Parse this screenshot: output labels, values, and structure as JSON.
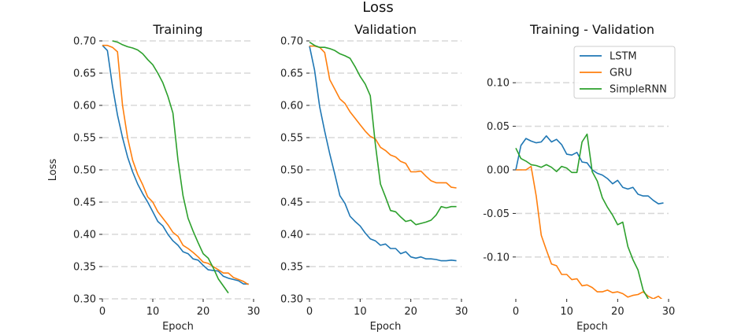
{
  "figure": {
    "title": "Loss"
  },
  "colors": {
    "LSTM": "#1f77b4",
    "GRU": "#ff7f0e",
    "SimpleRNN": "#2ca02c",
    "grid": "#d9d9d9",
    "axis": "#222222"
  },
  "legend": {
    "placement": "top-right of third panel",
    "items": [
      "LSTM",
      "GRU",
      "SimpleRNN"
    ]
  },
  "chart_data": [
    {
      "type": "line",
      "title": "Training",
      "xlabel": "Epoch",
      "ylabel": "Loss",
      "xlim": [
        0,
        30
      ],
      "ylim": [
        0.3,
        0.7
      ],
      "xticks": [
        0,
        10,
        20,
        30
      ],
      "yticks": [
        0.3,
        0.35,
        0.4,
        0.45,
        0.5,
        0.55,
        0.6,
        0.65,
        0.7
      ],
      "ytick_labels": [
        "0.30",
        "0.35",
        "0.40",
        "0.45",
        "0.50",
        "0.55",
        "0.60",
        "0.65",
        "0.70"
      ],
      "grid": "horizontal dashed",
      "series": [
        {
          "name": "LSTM",
          "x": [
            0,
            1,
            2,
            3,
            4,
            5,
            6,
            7,
            8,
            9,
            10,
            11,
            12,
            13,
            14,
            15,
            16,
            17,
            18,
            19,
            20,
            21,
            22,
            23,
            24,
            25,
            26,
            27,
            28,
            29
          ],
          "y": [
            0.693,
            0.685,
            0.63,
            0.585,
            0.55,
            0.52,
            0.497,
            0.478,
            0.463,
            0.45,
            0.435,
            0.42,
            0.413,
            0.4,
            0.39,
            0.383,
            0.373,
            0.37,
            0.362,
            0.36,
            0.352,
            0.345,
            0.344,
            0.343,
            0.335,
            0.332,
            0.33,
            0.328,
            0.323,
            0.323
          ]
        },
        {
          "name": "GRU",
          "x": [
            0,
            1,
            2,
            3,
            4,
            5,
            6,
            7,
            8,
            9,
            10,
            11,
            12,
            13,
            14,
            15,
            16,
            17,
            18,
            19,
            20,
            21,
            22,
            23,
            24,
            25,
            26,
            27,
            28,
            29
          ],
          "y": [
            0.693,
            0.693,
            0.69,
            0.683,
            0.6,
            0.55,
            0.515,
            0.493,
            0.477,
            0.458,
            0.45,
            0.435,
            0.425,
            0.415,
            0.403,
            0.397,
            0.383,
            0.378,
            0.372,
            0.365,
            0.357,
            0.355,
            0.35,
            0.345,
            0.34,
            0.34,
            0.333,
            0.33,
            0.327,
            0.322
          ]
        },
        {
          "name": "SimpleRNN",
          "x": [
            2,
            3,
            4,
            5,
            6,
            7,
            8,
            9,
            10,
            11,
            12,
            13,
            14,
            15,
            16,
            17,
            18,
            19,
            20,
            21,
            22,
            23,
            24,
            25
          ],
          "y": [
            0.7,
            0.698,
            0.694,
            0.691,
            0.689,
            0.686,
            0.68,
            0.671,
            0.663,
            0.65,
            0.635,
            0.614,
            0.588,
            0.515,
            0.46,
            0.425,
            0.405,
            0.387,
            0.37,
            0.363,
            0.348,
            0.331,
            0.32,
            0.309
          ]
        }
      ]
    },
    {
      "type": "line",
      "title": "Validation",
      "xlabel": "Epoch",
      "ylabel": "",
      "xlim": [
        0,
        30
      ],
      "ylim": [
        0.3,
        0.7
      ],
      "xticks": [
        0,
        10,
        20,
        30
      ],
      "yticks": [
        0.3,
        0.35,
        0.4,
        0.45,
        0.5,
        0.55,
        0.6,
        0.65,
        0.7
      ],
      "ytick_labels": [
        "0.30",
        "0.35",
        "0.40",
        "0.45",
        "0.50",
        "0.55",
        "0.60",
        "0.65",
        "0.70"
      ],
      "grid": "horizontal dashed",
      "series": [
        {
          "name": "LSTM",
          "x": [
            0,
            1,
            2,
            3,
            4,
            5,
            6,
            7,
            8,
            9,
            10,
            11,
            12,
            13,
            14,
            15,
            16,
            17,
            18,
            19,
            20,
            21,
            22,
            23,
            24,
            25,
            26,
            27,
            28,
            29
          ],
          "y": [
            0.692,
            0.655,
            0.598,
            0.56,
            0.525,
            0.493,
            0.46,
            0.448,
            0.428,
            0.42,
            0.413,
            0.402,
            0.393,
            0.39,
            0.383,
            0.385,
            0.378,
            0.378,
            0.37,
            0.373,
            0.365,
            0.363,
            0.365,
            0.362,
            0.362,
            0.361,
            0.359,
            0.359,
            0.36,
            0.359
          ]
        },
        {
          "name": "GRU",
          "x": [
            0,
            1,
            2,
            3,
            4,
            5,
            6,
            7,
            8,
            9,
            10,
            11,
            12,
            13,
            14,
            15,
            16,
            17,
            18,
            19,
            20,
            21,
            22,
            23,
            24,
            25,
            26,
            27,
            28,
            29
          ],
          "y": [
            0.692,
            0.692,
            0.69,
            0.682,
            0.64,
            0.625,
            0.61,
            0.603,
            0.59,
            0.58,
            0.57,
            0.56,
            0.552,
            0.548,
            0.535,
            0.53,
            0.523,
            0.52,
            0.513,
            0.51,
            0.497,
            0.497,
            0.498,
            0.49,
            0.483,
            0.48,
            0.48,
            0.48,
            0.473,
            0.472
          ]
        },
        {
          "name": "SimpleRNN",
          "x": [
            0,
            1,
            2,
            3,
            4,
            5,
            6,
            7,
            8,
            9,
            10,
            11,
            12,
            13,
            14,
            15,
            16,
            17,
            18,
            19,
            20,
            21,
            22,
            23,
            24,
            25,
            26,
            27,
            28,
            29
          ],
          "y": [
            0.698,
            0.693,
            0.69,
            0.69,
            0.688,
            0.685,
            0.68,
            0.677,
            0.673,
            0.66,
            0.645,
            0.633,
            0.615,
            0.54,
            0.478,
            0.458,
            0.437,
            0.435,
            0.427,
            0.42,
            0.422,
            0.415,
            0.417,
            0.419,
            0.422,
            0.43,
            0.443,
            0.441,
            0.443,
            0.443
          ]
        }
      ]
    },
    {
      "type": "line",
      "title": "Training - Validation",
      "xlabel": "Epoch",
      "ylabel": "",
      "xlim": [
        0,
        30
      ],
      "ylim": [
        -0.148,
        0.148
      ],
      "xticks": [
        0,
        10,
        20,
        30
      ],
      "yticks": [
        -0.1,
        -0.05,
        0.0,
        0.05,
        0.1
      ],
      "ytick_labels": [
        "-0.10",
        "-0.05",
        "0.00",
        "0.05",
        "0.10"
      ],
      "grid": "horizontal dashed",
      "series": [
        {
          "name": "LSTM",
          "x": [
            0,
            1,
            2,
            3,
            4,
            5,
            6,
            7,
            8,
            9,
            10,
            11,
            12,
            13,
            14,
            15,
            16,
            17,
            18,
            19,
            20,
            21,
            22,
            23,
            24,
            25,
            26,
            27,
            28,
            29
          ],
          "y": [
            0.0,
            0.028,
            0.036,
            0.033,
            0.031,
            0.032,
            0.039,
            0.032,
            0.035,
            0.029,
            0.018,
            0.017,
            0.02,
            0.009,
            0.008,
            0.0,
            -0.004,
            -0.006,
            -0.01,
            -0.016,
            -0.012,
            -0.02,
            -0.022,
            -0.02,
            -0.028,
            -0.03,
            -0.03,
            -0.035,
            -0.039,
            -0.038
          ]
        },
        {
          "name": "GRU",
          "x": [
            0,
            1,
            2,
            3,
            4,
            5,
            6,
            7,
            8,
            9,
            10,
            11,
            12,
            13,
            14,
            15,
            16,
            17,
            18,
            19,
            20,
            21,
            22,
            23,
            24,
            25,
            26,
            27,
            28,
            29
          ],
          "y": [
            0.0,
            0.0,
            0.0,
            0.004,
            -0.03,
            -0.075,
            -0.092,
            -0.108,
            -0.11,
            -0.12,
            -0.12,
            -0.126,
            -0.125,
            -0.133,
            -0.132,
            -0.135,
            -0.14,
            -0.14,
            -0.138,
            -0.141,
            -0.14,
            -0.142,
            -0.146,
            -0.144,
            -0.143,
            -0.14,
            -0.145,
            -0.148,
            -0.145,
            -0.15
          ]
        },
        {
          "name": "SimpleRNN",
          "x": [
            0,
            1,
            2,
            3,
            4,
            5,
            6,
            7,
            8,
            9,
            10,
            11,
            12,
            13,
            14,
            15,
            16,
            17,
            18,
            19,
            20,
            21,
            22,
            23,
            24,
            25,
            26
          ],
          "y": [
            0.025,
            0.013,
            0.01,
            0.006,
            0.005,
            0.003,
            0.006,
            0.003,
            -0.002,
            0.004,
            0.002,
            -0.003,
            -0.003,
            0.032,
            0.041,
            -0.002,
            -0.013,
            -0.032,
            -0.043,
            -0.052,
            -0.063,
            -0.06,
            -0.088,
            -0.103,
            -0.115,
            -0.138,
            -0.148
          ]
        }
      ]
    }
  ]
}
